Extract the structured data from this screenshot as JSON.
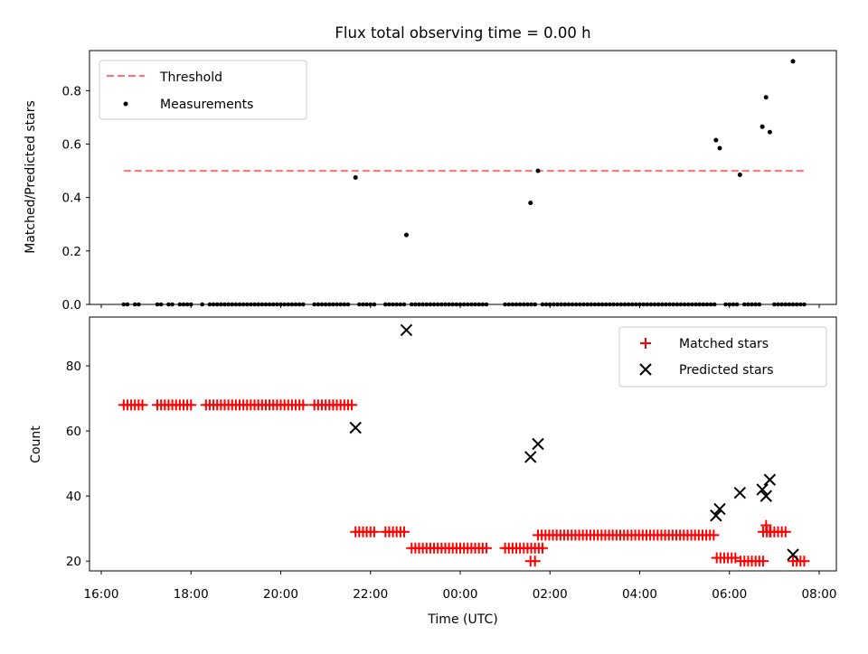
{
  "figure": {
    "title": "Flux total observing time = 0.00 h"
  },
  "chart_data": [
    {
      "type": "scatter",
      "ylabel": "Matched/Predicted stars",
      "xlabel": "",
      "xlim": [
        "16:00",
        "08:00"
      ],
      "ylim": [
        0,
        0.95
      ],
      "y_ticks": [
        "0.0",
        "0.2",
        "0.4",
        "0.6",
        "0.8"
      ],
      "legend_position": "upper-left",
      "threshold": {
        "name": "Threshold",
        "value": 0.5,
        "x_start": "16:30",
        "x_end": "07:40",
        "color": "#ff7070"
      },
      "measurements": {
        "name": "Measurements",
        "color": "#000000",
        "zero_value_times": [
          "16:30",
          "16:35",
          "16:45",
          "16:50",
          "17:15",
          "17:20",
          "17:30",
          "17:35",
          "17:45",
          "17:50",
          "17:55",
          "18:00",
          "18:15",
          "18:25",
          "18:30",
          "18:35",
          "18:40",
          "18:45",
          "18:50",
          "18:55",
          "19:00",
          "19:05",
          "19:10",
          "19:15",
          "19:20",
          "19:25",
          "19:30",
          "19:35",
          "19:40",
          "19:45",
          "19:50",
          "19:55",
          "20:00",
          "20:05",
          "20:10",
          "20:15",
          "20:20",
          "20:25",
          "20:30",
          "20:45",
          "20:50",
          "20:55",
          "21:00",
          "21:05",
          "21:10",
          "21:15",
          "21:20",
          "21:25",
          "21:30",
          "21:45",
          "21:50",
          "21:55",
          "22:00",
          "22:05",
          "22:20",
          "22:25",
          "22:30",
          "22:35",
          "22:40",
          "22:45",
          "22:55",
          "23:00",
          "23:05",
          "23:10",
          "23:15",
          "23:20",
          "23:25",
          "23:30",
          "23:35",
          "23:40",
          "23:45",
          "23:50",
          "23:55",
          "00:00",
          "00:05",
          "00:10",
          "00:15",
          "00:20",
          "00:25",
          "00:30",
          "00:35",
          "01:00",
          "01:05",
          "01:10",
          "01:15",
          "01:20",
          "01:25",
          "01:30",
          "01:35",
          "01:40",
          "01:50",
          "01:55",
          "02:00",
          "02:05",
          "02:10",
          "02:15",
          "02:20",
          "02:25",
          "02:30",
          "02:35",
          "02:40",
          "02:45",
          "02:50",
          "02:55",
          "03:00",
          "03:05",
          "03:10",
          "03:15",
          "03:20",
          "03:25",
          "03:30",
          "03:35",
          "03:40",
          "03:45",
          "03:50",
          "03:55",
          "04:00",
          "04:05",
          "04:10",
          "04:15",
          "04:20",
          "04:25",
          "04:30",
          "04:35",
          "04:40",
          "04:45",
          "04:50",
          "04:55",
          "05:00",
          "05:05",
          "05:10",
          "05:15",
          "05:20",
          "05:25",
          "05:30",
          "05:35",
          "05:40",
          "05:55",
          "06:00",
          "06:05",
          "06:10",
          "06:20",
          "06:25",
          "06:30",
          "06:35",
          "06:40",
          "07:00",
          "07:05",
          "07:10",
          "07:15",
          "07:20",
          "07:25",
          "07:30",
          "07:35",
          "07:40"
        ],
        "points": [
          {
            "time": "21:40",
            "value": 0.475
          },
          {
            "time": "22:48",
            "value": 0.26
          },
          {
            "time": "01:34",
            "value": 0.38
          },
          {
            "time": "01:44",
            "value": 0.5
          },
          {
            "time": "05:42",
            "value": 0.615
          },
          {
            "time": "05:47",
            "value": 0.585
          },
          {
            "time": "06:14",
            "value": 0.485
          },
          {
            "time": "06:44",
            "value": 0.665
          },
          {
            "time": "06:49",
            "value": 0.775
          },
          {
            "time": "06:54",
            "value": 0.645
          },
          {
            "time": "07:25",
            "value": 0.91
          }
        ]
      }
    },
    {
      "type": "scatter",
      "ylabel": "Count",
      "xlabel": "Time (UTC)",
      "xlim": [
        "16:00",
        "08:00"
      ],
      "ylim": [
        17,
        95
      ],
      "y_ticks": [
        "20",
        "40",
        "60",
        "80"
      ],
      "x_ticks": [
        "16:00",
        "18:00",
        "20:00",
        "22:00",
        "00:00",
        "02:00",
        "04:00",
        "06:00",
        "08:00"
      ],
      "legend_position": "upper-right",
      "series": [
        {
          "name": "Matched stars",
          "marker": "plus",
          "color": "#ff0000",
          "segments": [
            {
              "start": "16:30",
              "end": "16:55",
              "value": 68
            },
            {
              "start": "17:15",
              "end": "18:00",
              "value": 68
            },
            {
              "start": "18:20",
              "end": "20:30",
              "value": 68
            },
            {
              "start": "20:45",
              "end": "21:35",
              "value": 68
            },
            {
              "start": "21:40",
              "end": "22:05",
              "value": 29
            },
            {
              "start": "22:20",
              "end": "22:48",
              "value": 29
            },
            {
              "start": "22:55",
              "end": "00:35",
              "value": 24
            },
            {
              "start": "01:00",
              "end": "01:50",
              "value": 24
            },
            {
              "start": "01:44",
              "end": "05:40",
              "value": 28
            },
            {
              "start": "05:43",
              "end": "06:10",
              "value": 21
            },
            {
              "start": "06:15",
              "end": "06:45",
              "value": 20
            },
            {
              "start": "06:45",
              "end": "07:15",
              "value": 29
            },
            {
              "start": "07:25",
              "end": "07:40",
              "value": 20
            }
          ],
          "points": [
            {
              "time": "01:34",
              "value": 20
            },
            {
              "time": "01:40",
              "value": 20
            },
            {
              "time": "06:49",
              "value": 31
            },
            {
              "time": "06:54",
              "value": 29
            }
          ]
        },
        {
          "name": "Predicted stars",
          "marker": "x",
          "color": "#000000",
          "points": [
            {
              "time": "21:40",
              "value": 61
            },
            {
              "time": "22:48",
              "value": 91
            },
            {
              "time": "01:34",
              "value": 52
            },
            {
              "time": "01:44",
              "value": 56
            },
            {
              "time": "05:42",
              "value": 34
            },
            {
              "time": "05:47",
              "value": 36
            },
            {
              "time": "06:14",
              "value": 41
            },
            {
              "time": "06:44",
              "value": 42
            },
            {
              "time": "06:49",
              "value": 40
            },
            {
              "time": "06:54",
              "value": 45
            },
            {
              "time": "07:25",
              "value": 22
            }
          ]
        }
      ]
    }
  ]
}
